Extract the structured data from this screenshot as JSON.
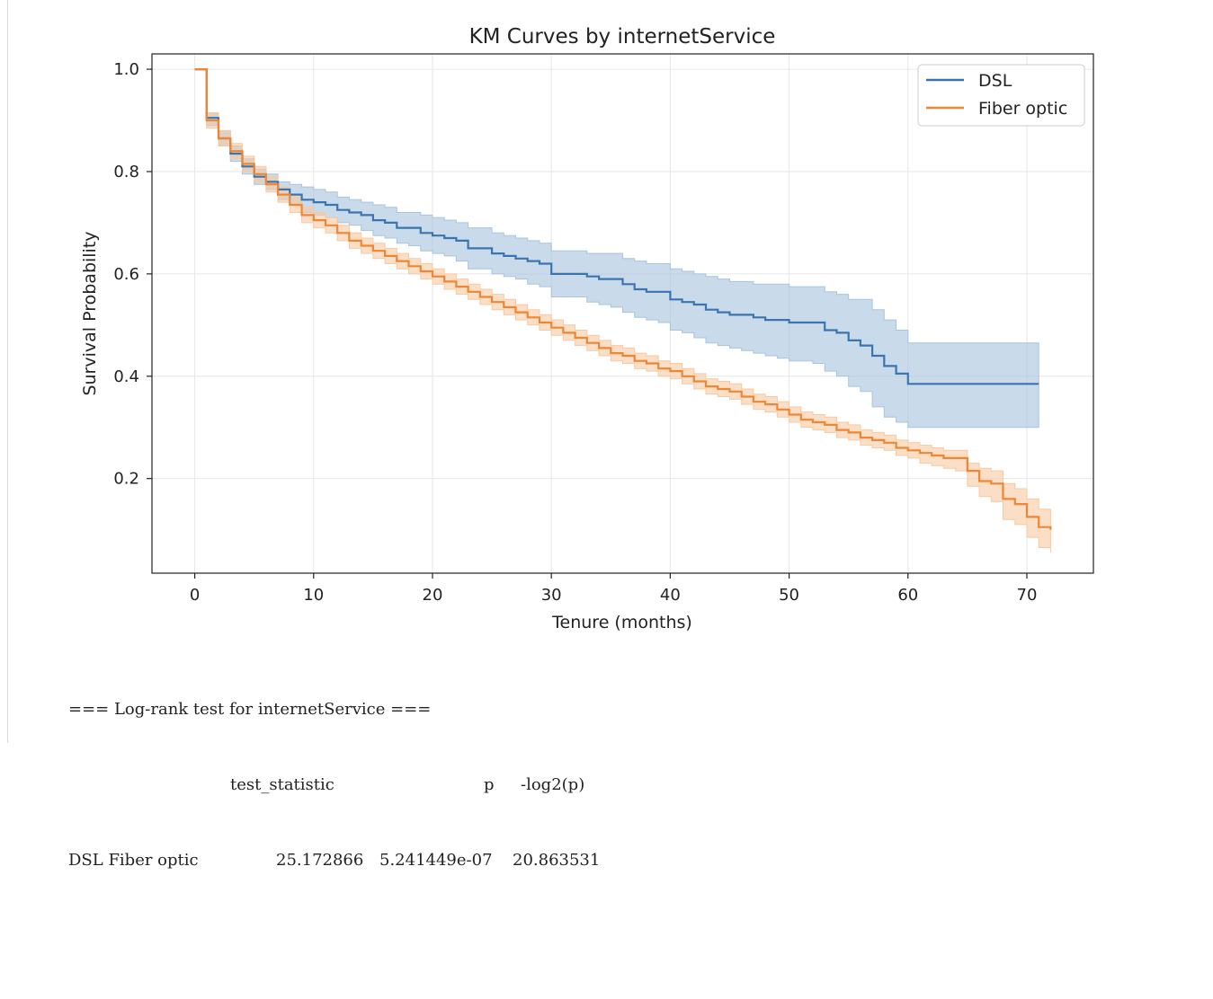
{
  "chart_data": {
    "type": "line",
    "title": "KM Curves by internetService",
    "xlabel": "Tenure (months)",
    "ylabel": "Survival Probability",
    "xlim": [
      -3.6,
      75.6
    ],
    "ylim": [
      0.015,
      1.03
    ],
    "xticks": [
      0,
      10,
      20,
      30,
      40,
      50,
      60,
      70
    ],
    "yticks": [
      0.2,
      0.4,
      0.6,
      0.8,
      1.0
    ],
    "xtick_labels": [
      "0",
      "10",
      "20",
      "30",
      "40",
      "50",
      "60",
      "70"
    ],
    "ytick_labels": [
      "0.2",
      "0.4",
      "0.6",
      "0.8",
      "1.0"
    ],
    "grid": true,
    "legend_position": "top-right",
    "series": [
      {
        "name": "DSL",
        "color": "#3a75b0",
        "band_color": "#a8c4de",
        "x": [
          0,
          1,
          2,
          3,
          4,
          5,
          6,
          7,
          8,
          9,
          10,
          11,
          12,
          13,
          14,
          15,
          16,
          17,
          18,
          19,
          20,
          21,
          22,
          23,
          24,
          25,
          26,
          27,
          28,
          29,
          30,
          31,
          32,
          33,
          34,
          35,
          36,
          37,
          38,
          39,
          40,
          41,
          42,
          43,
          44,
          45,
          46,
          47,
          48,
          49,
          50,
          51,
          52,
          53,
          54,
          55,
          56,
          57,
          58,
          59,
          60,
          61,
          62,
          63,
          64,
          65,
          66,
          67,
          68,
          69,
          70,
          71
        ],
        "y": [
          1.0,
          0.905,
          0.865,
          0.835,
          0.81,
          0.79,
          0.78,
          0.765,
          0.755,
          0.745,
          0.74,
          0.735,
          0.725,
          0.72,
          0.715,
          0.705,
          0.7,
          0.69,
          0.69,
          0.68,
          0.675,
          0.67,
          0.665,
          0.65,
          0.65,
          0.64,
          0.635,
          0.63,
          0.625,
          0.62,
          0.6,
          0.6,
          0.6,
          0.595,
          0.59,
          0.59,
          0.58,
          0.57,
          0.565,
          0.565,
          0.55,
          0.545,
          0.54,
          0.53,
          0.525,
          0.52,
          0.52,
          0.515,
          0.51,
          0.51,
          0.505,
          0.505,
          0.505,
          0.49,
          0.485,
          0.47,
          0.46,
          0.44,
          0.42,
          0.405,
          0.385,
          0.385,
          0.385,
          0.385,
          0.385,
          0.385,
          0.385,
          0.385,
          0.385,
          0.385,
          0.385,
          0.385
        ],
        "ci_low": [
          1.0,
          0.89,
          0.85,
          0.82,
          0.795,
          0.775,
          0.765,
          0.745,
          0.735,
          0.72,
          0.715,
          0.71,
          0.7,
          0.695,
          0.685,
          0.675,
          0.67,
          0.66,
          0.655,
          0.645,
          0.64,
          0.635,
          0.625,
          0.61,
          0.61,
          0.6,
          0.595,
          0.59,
          0.58,
          0.575,
          0.555,
          0.555,
          0.555,
          0.545,
          0.54,
          0.535,
          0.525,
          0.515,
          0.51,
          0.505,
          0.49,
          0.485,
          0.475,
          0.465,
          0.46,
          0.455,
          0.45,
          0.445,
          0.44,
          0.435,
          0.43,
          0.43,
          0.425,
          0.41,
          0.4,
          0.38,
          0.37,
          0.34,
          0.32,
          0.31,
          0.3,
          0.3,
          0.3,
          0.3,
          0.3,
          0.3,
          0.3,
          0.3,
          0.3,
          0.3,
          0.3,
          0.3
        ],
        "ci_high": [
          1.0,
          0.915,
          0.88,
          0.85,
          0.825,
          0.805,
          0.795,
          0.78,
          0.775,
          0.77,
          0.765,
          0.76,
          0.75,
          0.745,
          0.74,
          0.735,
          0.73,
          0.72,
          0.72,
          0.715,
          0.71,
          0.705,
          0.7,
          0.69,
          0.69,
          0.68,
          0.675,
          0.67,
          0.665,
          0.66,
          0.645,
          0.645,
          0.645,
          0.64,
          0.64,
          0.64,
          0.63,
          0.625,
          0.62,
          0.62,
          0.61,
          0.605,
          0.6,
          0.595,
          0.59,
          0.585,
          0.585,
          0.58,
          0.58,
          0.58,
          0.575,
          0.575,
          0.575,
          0.565,
          0.56,
          0.55,
          0.55,
          0.53,
          0.51,
          0.49,
          0.465,
          0.465,
          0.465,
          0.465,
          0.465,
          0.465,
          0.465,
          0.465,
          0.465,
          0.465,
          0.465,
          0.465
        ]
      },
      {
        "name": "Fiber optic",
        "color": "#ef8636",
        "band_color": "#f7c9a2",
        "x": [
          0,
          1,
          2,
          3,
          4,
          5,
          6,
          7,
          8,
          9,
          10,
          11,
          12,
          13,
          14,
          15,
          16,
          17,
          18,
          19,
          20,
          21,
          22,
          23,
          24,
          25,
          26,
          27,
          28,
          29,
          30,
          31,
          32,
          33,
          34,
          35,
          36,
          37,
          38,
          39,
          40,
          41,
          42,
          43,
          44,
          45,
          46,
          47,
          48,
          49,
          50,
          51,
          52,
          53,
          54,
          55,
          56,
          57,
          58,
          59,
          60,
          61,
          62,
          63,
          64,
          65,
          66,
          67,
          68,
          69,
          70,
          71,
          72
        ],
        "y": [
          1.0,
          0.9,
          0.865,
          0.84,
          0.815,
          0.795,
          0.775,
          0.755,
          0.735,
          0.715,
          0.705,
          0.695,
          0.68,
          0.665,
          0.655,
          0.645,
          0.635,
          0.625,
          0.615,
          0.605,
          0.595,
          0.585,
          0.575,
          0.565,
          0.555,
          0.545,
          0.535,
          0.525,
          0.515,
          0.505,
          0.495,
          0.485,
          0.475,
          0.465,
          0.455,
          0.445,
          0.44,
          0.43,
          0.425,
          0.415,
          0.41,
          0.4,
          0.39,
          0.38,
          0.375,
          0.37,
          0.36,
          0.35,
          0.345,
          0.335,
          0.325,
          0.315,
          0.31,
          0.305,
          0.295,
          0.29,
          0.28,
          0.275,
          0.27,
          0.26,
          0.255,
          0.25,
          0.245,
          0.24,
          0.24,
          0.215,
          0.195,
          0.19,
          0.16,
          0.15,
          0.125,
          0.105,
          0.1
        ],
        "ci_low": [
          1.0,
          0.885,
          0.85,
          0.825,
          0.8,
          0.78,
          0.76,
          0.74,
          0.72,
          0.7,
          0.69,
          0.68,
          0.665,
          0.65,
          0.64,
          0.63,
          0.62,
          0.61,
          0.6,
          0.59,
          0.58,
          0.57,
          0.56,
          0.55,
          0.54,
          0.53,
          0.52,
          0.51,
          0.5,
          0.49,
          0.48,
          0.47,
          0.46,
          0.45,
          0.44,
          0.43,
          0.425,
          0.415,
          0.41,
          0.4,
          0.395,
          0.385,
          0.375,
          0.365,
          0.36,
          0.355,
          0.345,
          0.335,
          0.33,
          0.32,
          0.31,
          0.3,
          0.295,
          0.29,
          0.28,
          0.275,
          0.265,
          0.26,
          0.255,
          0.245,
          0.24,
          0.23,
          0.225,
          0.22,
          0.215,
          0.185,
          0.165,
          0.155,
          0.12,
          0.11,
          0.085,
          0.065,
          0.055
        ],
        "ci_high": [
          1.0,
          0.915,
          0.88,
          0.855,
          0.83,
          0.81,
          0.79,
          0.77,
          0.75,
          0.73,
          0.72,
          0.71,
          0.695,
          0.68,
          0.67,
          0.66,
          0.65,
          0.64,
          0.63,
          0.62,
          0.61,
          0.6,
          0.59,
          0.58,
          0.57,
          0.56,
          0.55,
          0.54,
          0.53,
          0.52,
          0.51,
          0.5,
          0.49,
          0.48,
          0.47,
          0.46,
          0.455,
          0.445,
          0.44,
          0.43,
          0.425,
          0.415,
          0.405,
          0.395,
          0.39,
          0.385,
          0.375,
          0.365,
          0.36,
          0.35,
          0.34,
          0.33,
          0.325,
          0.32,
          0.31,
          0.305,
          0.295,
          0.29,
          0.285,
          0.275,
          0.27,
          0.265,
          0.26,
          0.255,
          0.255,
          0.23,
          0.22,
          0.215,
          0.19,
          0.18,
          0.16,
          0.14,
          0.135
        ]
      }
    ]
  },
  "output": {
    "header": "=== Log-rank test for internetService ===",
    "columns": [
      "test_statistic",
      "p",
      "-log2(p)"
    ],
    "row": {
      "label": "DSL Fiber optic",
      "test_statistic": "25.172866",
      "p": "5.241449e-07",
      "neg_log2_p": "20.863531"
    }
  }
}
